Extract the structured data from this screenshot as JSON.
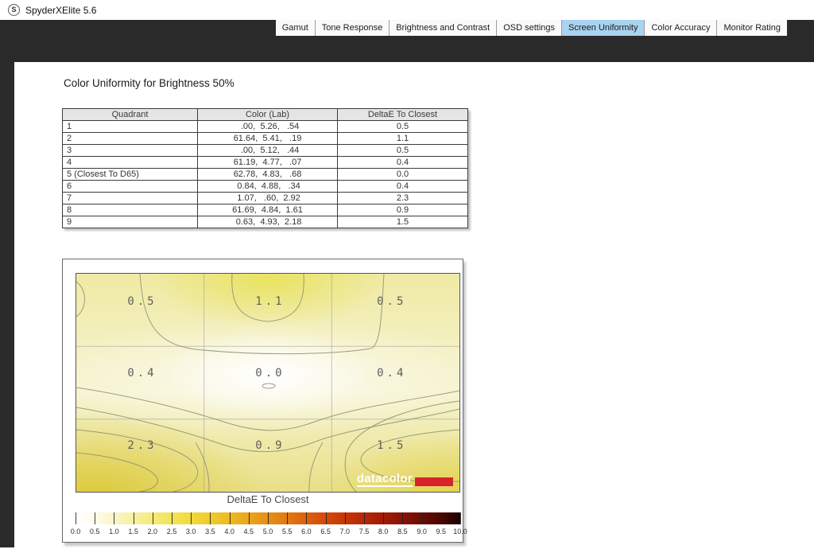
{
  "window": {
    "title": "SpyderXElite 5.6",
    "app_icon": "S",
    "body_color": "#2b2a2a"
  },
  "tabs": [
    {
      "label": "Gamut",
      "active": false
    },
    {
      "label": "Tone Response",
      "active": false
    },
    {
      "label": "Brightness and Contrast",
      "active": false
    },
    {
      "label": "OSD settings",
      "active": false
    },
    {
      "label": "Screen Uniformity",
      "active": true
    },
    {
      "label": "Color Accuracy",
      "active": false
    },
    {
      "label": "Monitor Rating",
      "active": false
    }
  ],
  "report": {
    "title": "Color Uniformity for Brightness 50%",
    "table": {
      "columns": [
        "Quadrant",
        "Color (Lab)",
        "DeltaE To Closest"
      ],
      "rows": [
        {
          "quadrant": "1",
          "lab": "  .00,  5.26,   .54",
          "delta_e": "0.5"
        },
        {
          "quadrant": "2",
          "lab": "61.64,  5.41,   .19",
          "delta_e": "1.1"
        },
        {
          "quadrant": "3",
          "lab": "  .00,  5.12,   .44",
          "delta_e": "0.5"
        },
        {
          "quadrant": "4",
          "lab": "61.19,  4.77,   .07",
          "delta_e": "0.4"
        },
        {
          "quadrant": "5 (Closest To D65)",
          "lab": "62.78,  4.83,   .68",
          "delta_e": "0.0"
        },
        {
          "quadrant": "6",
          "lab": " 0.84,  4.88,   .34",
          "delta_e": "0.4"
        },
        {
          "quadrant": "7",
          "lab": " 1.07,   .60,  2.92",
          "delta_e": "2.3"
        },
        {
          "quadrant": "8",
          "lab": "61.69,  4.84,  1.61",
          "delta_e": "0.9"
        },
        {
          "quadrant": "9",
          "lab": " 0.63,  4.93,  2.18",
          "delta_e": "1.5"
        }
      ]
    }
  },
  "chart_data": {
    "type": "heatmap",
    "title": "DeltaE To Closest",
    "rows": 3,
    "cols": 3,
    "values": [
      [
        0.5,
        1.1,
        0.5
      ],
      [
        0.4,
        0.0,
        0.4
      ],
      [
        2.3,
        0.9,
        1.5
      ]
    ],
    "cells": [
      "0.5",
      "1.1",
      "0.5",
      "0.4",
      "0.0",
      "0.4",
      "2.3",
      "0.9",
      "1.5"
    ],
    "colorbar": {
      "min": 0.0,
      "max": 10.0,
      "step": 0.5,
      "ticks": [
        "0.0",
        "0.5",
        "1.0",
        "1.5",
        "2.0",
        "2.5",
        "3.0",
        "3.5",
        "4.0",
        "4.5",
        "5.0",
        "5.5",
        "6.0",
        "6.5",
        "7.0",
        "7.5",
        "8.0",
        "8.5",
        "9.0",
        "9.5",
        "10.0"
      ]
    },
    "brand": {
      "name": "datacolor",
      "accent": "#d8232a"
    }
  }
}
